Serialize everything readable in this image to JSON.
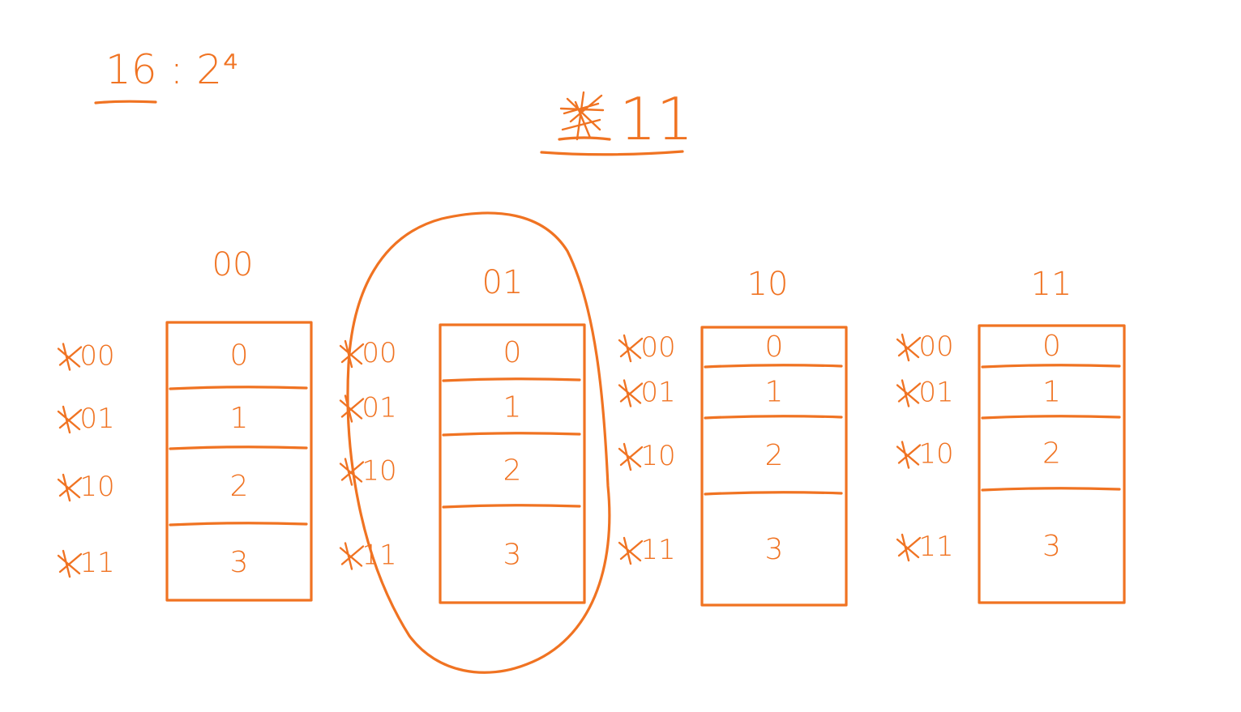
{
  "colors": {
    "ink": "#f07322",
    "background": "#ffffff"
  },
  "header": {
    "fraction": "16 : 2⁴",
    "title": "11"
  },
  "columns": [
    {
      "label": "00",
      "cells": [
        "0",
        "1",
        "2",
        "3"
      ],
      "row_labels": [
        "00",
        "01",
        "10",
        "11"
      ],
      "circled": false
    },
    {
      "label": "01",
      "cells": [
        "0",
        "1",
        "2",
        "3"
      ],
      "row_labels": [
        "00",
        "01",
        "10",
        "11"
      ],
      "circled": true
    },
    {
      "label": "10",
      "cells": [
        "0",
        "1",
        "2",
        "3"
      ],
      "row_labels": [
        "00",
        "01",
        "10",
        "11"
      ],
      "circled": false
    },
    {
      "label": "11",
      "cells": [
        "0",
        "1",
        "2",
        "3"
      ],
      "row_labels": [
        "00",
        "01",
        "10",
        "11"
      ],
      "circled": false
    }
  ]
}
